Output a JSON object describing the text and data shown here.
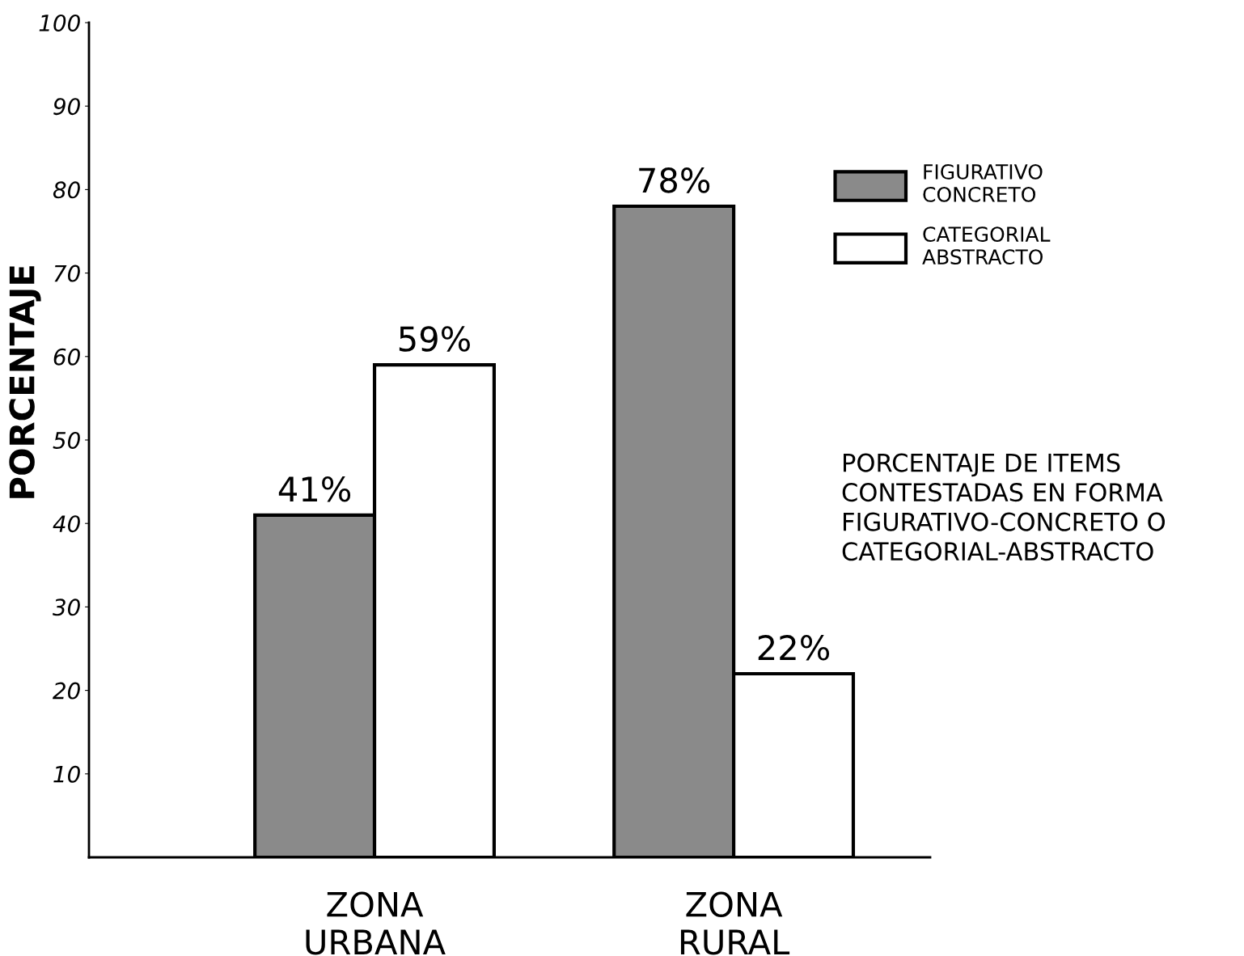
{
  "chart_data": {
    "type": "bar",
    "ylabel": "PORCENTAJE",
    "categories": [
      "ZONA\nURBANA",
      "ZONA\nRURAL"
    ],
    "series": [
      {
        "name": "FIGURATIVO\nCONCRETO",
        "color": "#8a8a8a",
        "values": [
          41,
          78
        ],
        "value_labels": [
          "41%",
          "78%"
        ]
      },
      {
        "name": "CATEGORIAL\nABSTRACTO",
        "color": "#ffffff",
        "values": [
          59,
          22
        ],
        "value_labels": [
          "59%",
          "22%"
        ]
      }
    ],
    "ylim": [
      0,
      100
    ],
    "yticks": [
      10,
      20,
      30,
      40,
      50,
      60,
      70,
      80,
      90,
      100
    ],
    "grid": false,
    "legend": "top right",
    "annotations": [
      "PORCENTAJE DE ITEMS\nCONTESTADAS EN FORMA\nFIGURATIVO-CONCRETO O\nCATEGORIAL-ABSTRACTO"
    ]
  }
}
